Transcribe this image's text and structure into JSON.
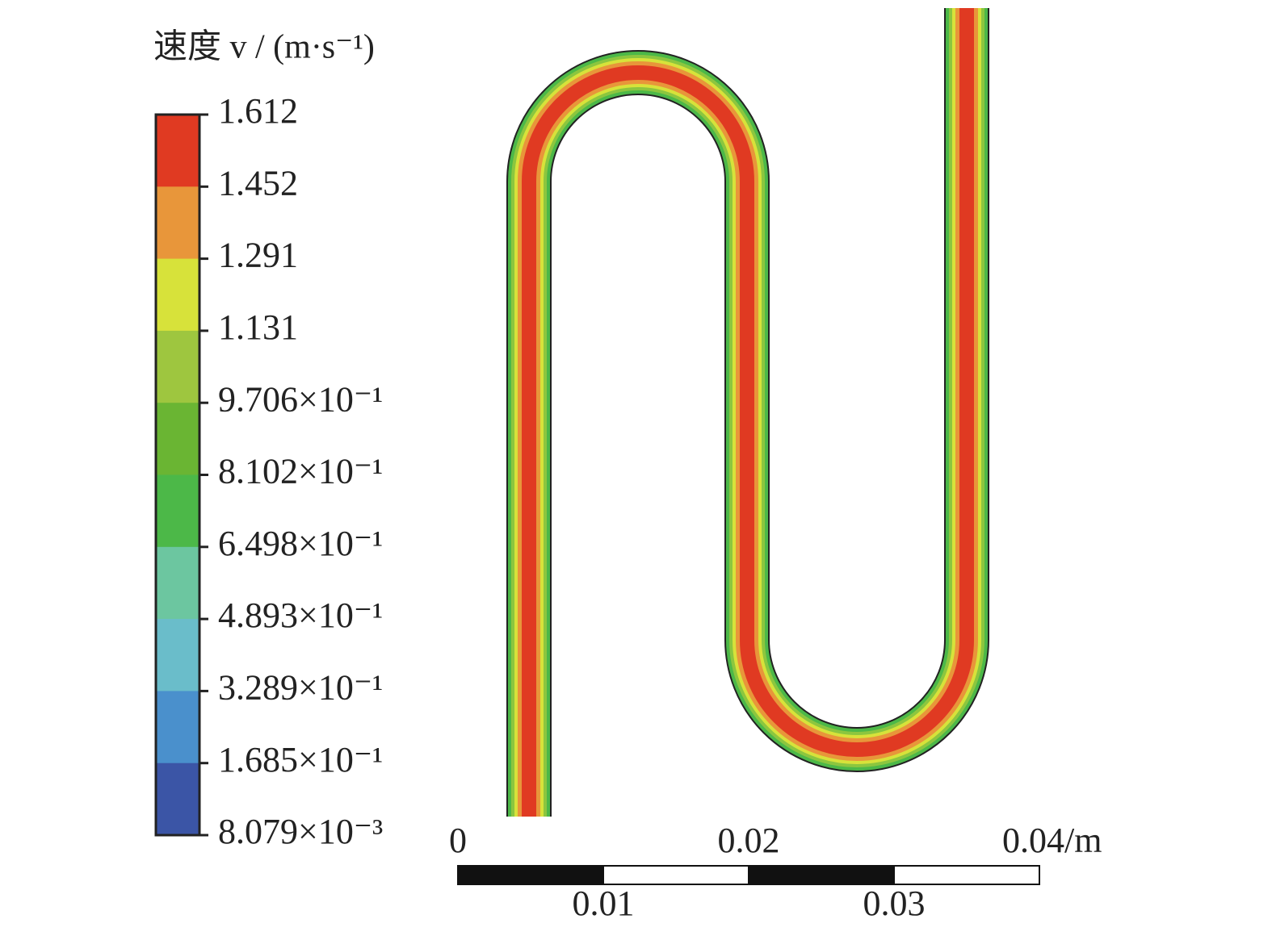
{
  "legend": {
    "title": "速度 v / (m·s⁻¹)",
    "labels": [
      "1.612",
      "1.452",
      "1.291",
      "1.131",
      "9.706×10⁻¹",
      "8.102×10⁻¹",
      "6.498×10⁻¹",
      "4.893×10⁻¹",
      "3.289×10⁻¹",
      "1.685×10⁻¹",
      "8.079×10⁻³"
    ],
    "colors": [
      "#e03a22",
      "#e8963a",
      "#d7e23a",
      "#9ec63f",
      "#6ab533",
      "#4cb848",
      "#6cc6a0",
      "#6abdca",
      "#4a90cc",
      "#3b55a6"
    ]
  },
  "scale_bar": {
    "top_labels": [
      "0",
      "0.02",
      "0.04/m"
    ],
    "bottom_labels": [
      "0.01",
      "0.03"
    ]
  }
}
